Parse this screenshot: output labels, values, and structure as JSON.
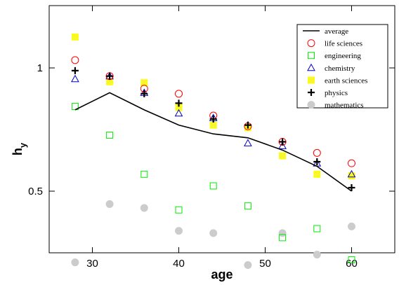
{
  "chart_data": {
    "type": "scatter",
    "xlabel": "age",
    "ylabel_main": "h",
    "ylabel_sub": "y",
    "xlim": [
      25,
      65
    ],
    "ylim": [
      0.3,
      1.3
    ],
    "x_ticks": [
      30,
      40,
      50,
      60
    ],
    "y_ticks": [
      0.5,
      1
    ],
    "y_tick_labels": [
      "0.5",
      "1"
    ],
    "legend_position": "top-right",
    "x": [
      28,
      32,
      36,
      40,
      44,
      48,
      52,
      56,
      60
    ],
    "series": [
      {
        "name": "average",
        "marker": "line",
        "color": "#000000",
        "values": [
          0.79,
          0.87,
          0.79,
          0.725,
          0.69,
          0.675,
          0.63,
          0.575,
          0.5
        ]
      },
      {
        "name": "life sciences",
        "marker": "circle",
        "color": "#ff0000",
        "values": [
          1.045,
          0.955,
          0.89,
          0.865,
          0.765,
          0.72,
          0.66,
          0.62,
          0.585
        ]
      },
      {
        "name": "engineering",
        "marker": "square",
        "color": "#00ee00",
        "values": [
          0.805,
          0.685,
          0.55,
          0.45,
          0.515,
          0.46,
          0.385,
          0.405,
          0.34
        ]
      },
      {
        "name": "chemistry",
        "marker": "triangle",
        "color": "#0000cc",
        "values": [
          0.94,
          0.955,
          0.87,
          0.775,
          0.755,
          0.655,
          0.645,
          0.585,
          0.55
        ]
      },
      {
        "name": "earth sciences",
        "marker": "hatched-square",
        "color": "#ffff00",
        "values": [
          1.19,
          0.925,
          0.92,
          0.8,
          0.725,
          0.715,
          0.61,
          0.55,
          0.545
        ]
      },
      {
        "name": "physics",
        "marker": "plus",
        "color": "#000000",
        "values": [
          0.985,
          0.955,
          0.865,
          0.82,
          0.75,
          0.725,
          0.66,
          0.59,
          0.51
        ]
      },
      {
        "name": "mathematics",
        "marker": "filled-circle",
        "color": "#cccccc",
        "values": [
          0.335,
          0.465,
          0.455,
          0.4,
          0.395,
          0.33,
          0.395,
          0.35,
          0.41
        ]
      }
    ]
  }
}
